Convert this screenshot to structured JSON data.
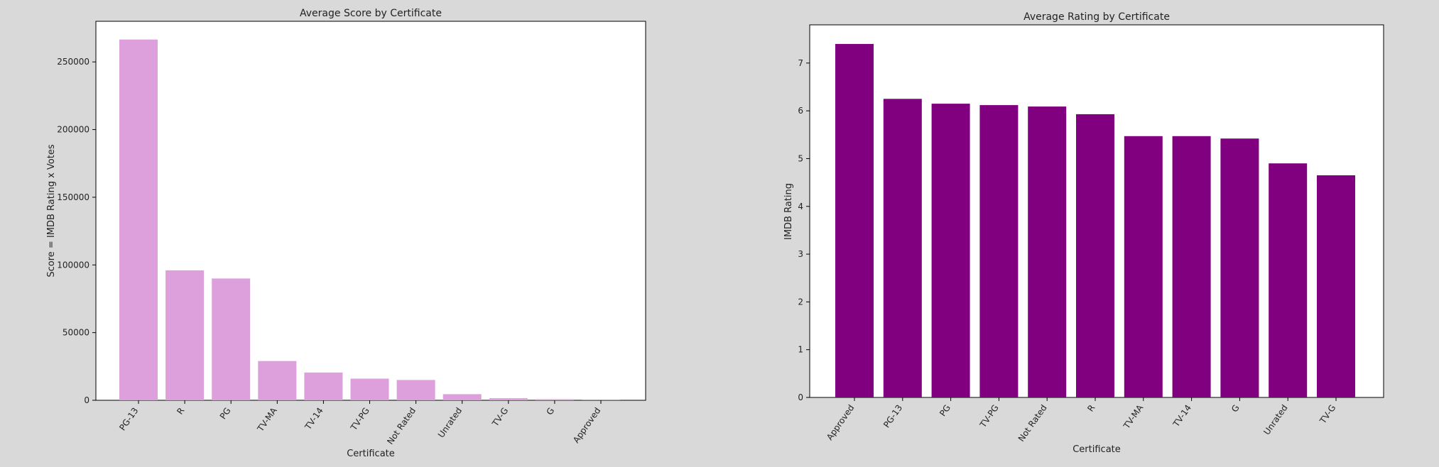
{
  "chart_data": [
    {
      "type": "bar",
      "title": "Average Score by Certificate",
      "xlabel": "Certificate",
      "ylabel": "Score = IMDB Rating x Votes",
      "categories": [
        "PG-13",
        "R",
        "PG",
        "TV-MA",
        "TV-14",
        "TV-PG",
        "Not Rated",
        "Unrated",
        "TV-G",
        "G",
        "Approved"
      ],
      "values": [
        266500,
        96000,
        90000,
        29000,
        20500,
        16000,
        15000,
        4500,
        1500,
        800,
        100
      ],
      "ylim": [
        0,
        280000
      ],
      "yticks": [
        0,
        50000,
        100000,
        150000,
        200000,
        250000
      ],
      "bar_color": "#dda0dd",
      "grid": false
    },
    {
      "type": "bar",
      "title": "Average Rating by Certificate",
      "xlabel": "Certificate",
      "ylabel": "IMDB Rating",
      "categories": [
        "Approved",
        "PG-13",
        "PG",
        "TV-PG",
        "Not Rated",
        "R",
        "TV-MA",
        "TV-14",
        "G",
        "Unrated",
        "TV-G"
      ],
      "values": [
        7.4,
        6.25,
        6.15,
        6.12,
        6.09,
        5.93,
        5.47,
        5.47,
        5.42,
        4.9,
        4.65
      ],
      "ylim": [
        0,
        7.8
      ],
      "yticks": [
        0,
        1,
        2,
        3,
        4,
        5,
        6,
        7
      ],
      "bar_color": "#800080",
      "grid": false
    }
  ]
}
